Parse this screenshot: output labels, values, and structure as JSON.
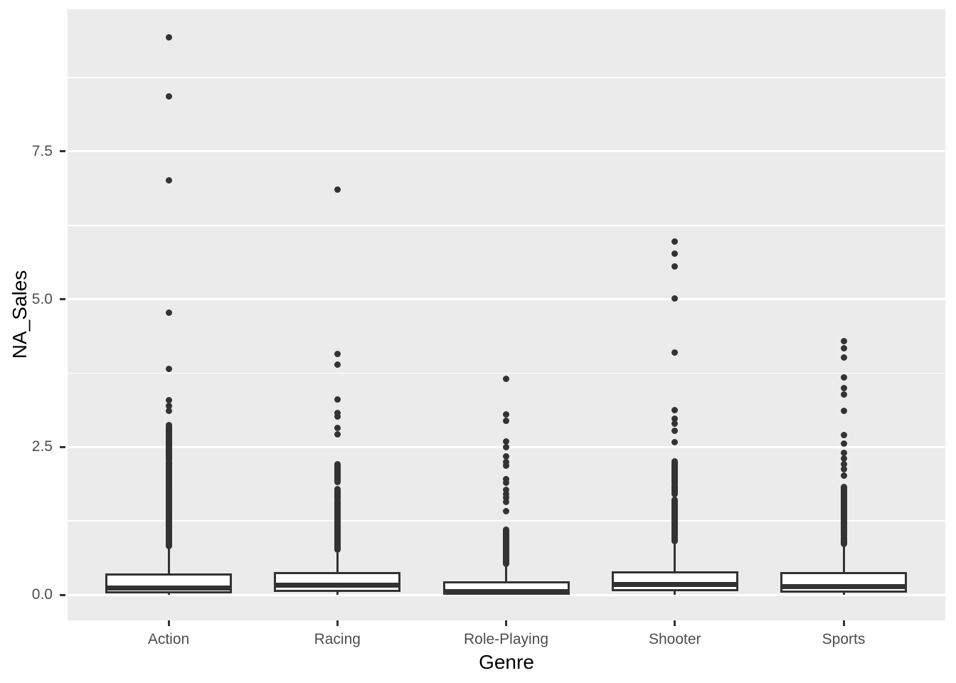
{
  "chart_data": {
    "type": "boxplot",
    "title": "",
    "xlabel": "Genre",
    "ylabel": "NA_Sales",
    "categories": [
      "Action",
      "Racing",
      "Role-Playing",
      "Shooter",
      "Sports"
    ],
    "y_axis": {
      "tick_values": [
        0.0,
        2.5,
        5.0,
        7.5
      ],
      "tick_labels": [
        "0.0",
        "2.5",
        "5.0",
        "7.5"
      ],
      "minor_tick_values": [
        1.25,
        3.75,
        6.25,
        8.75
      ],
      "ylim": [
        -0.43,
        9.91
      ],
      "grid": "on",
      "legend": "none"
    },
    "series": [
      {
        "genre": "Action",
        "whisker_low": 0.0,
        "q1": 0.02,
        "median": 0.12,
        "q3": 0.36,
        "whisker_high": 0.79,
        "outlier_points": [
          9.43,
          8.43,
          7.01,
          4.77,
          3.82,
          3.29,
          3.2,
          3.11
        ],
        "outlier_bands": [
          [
            2.87,
            2.71
          ],
          [
            2.69,
            2.28
          ],
          [
            2.25,
            1.74
          ],
          [
            1.71,
            1.61
          ],
          [
            1.58,
            1.49
          ],
          [
            1.46,
            0.83
          ]
        ]
      },
      {
        "genre": "Racing",
        "whisker_low": 0.0,
        "q1": 0.05,
        "median": 0.16,
        "q3": 0.39,
        "whisker_high": 0.71,
        "outlier_points": [
          6.85,
          4.07,
          3.89,
          3.3,
          3.08,
          3.01,
          2.82,
          2.71
        ],
        "outlier_bands": [
          [
            2.21,
            1.91
          ],
          [
            1.79,
            1.63
          ],
          [
            1.6,
            1.42
          ],
          [
            1.39,
            1.2
          ],
          [
            1.17,
            0.76
          ]
        ]
      },
      {
        "genre": "Role-Playing",
        "whisker_low": 0.0,
        "q1": 0.0,
        "median": 0.06,
        "q3": 0.23,
        "whisker_high": 0.49,
        "outlier_points": [
          3.65,
          3.05,
          2.94,
          2.6,
          2.5,
          2.34,
          2.24,
          2.18,
          1.96,
          1.89,
          1.78,
          1.7,
          1.64,
          1.57,
          1.42
        ],
        "outlier_bands": [
          [
            1.1,
            0.52
          ]
        ]
      },
      {
        "genre": "Shooter",
        "whisker_low": 0.0,
        "q1": 0.06,
        "median": 0.17,
        "q3": 0.4,
        "whisker_high": 0.89,
        "outlier_points": [
          5.98,
          5.77,
          5.55,
          5.01,
          4.1,
          3.12,
          2.98,
          2.89,
          2.78,
          2.58,
          2.26
        ],
        "outlier_bands": [
          [
            2.24,
            2.14
          ],
          [
            2.12,
            1.88
          ],
          [
            1.85,
            1.7
          ],
          [
            1.61,
            0.91
          ]
        ]
      },
      {
        "genre": "Sports",
        "whisker_low": 0.0,
        "q1": 0.04,
        "median": 0.14,
        "q3": 0.39,
        "whisker_high": 0.84,
        "outlier_points": [
          4.29,
          4.17,
          4.02,
          3.68,
          3.5,
          3.39,
          3.11,
          2.7,
          2.56,
          2.4,
          2.3,
          2.21,
          2.12,
          2.02
        ],
        "outlier_bands": [
          [
            1.82,
            1.0
          ],
          [
            0.97,
            0.86
          ]
        ]
      }
    ],
    "style": {
      "panel_background": "#EBEBEB",
      "grid_color": "#FFFFFF",
      "box_outline_color": "#333333",
      "box_fill_color": "#FFFFFF",
      "outlier_color": "#333333",
      "tick_label_color": "#4D4D4D",
      "axis_title_color": "#000000",
      "figure_background": "#FFFFFF"
    }
  }
}
